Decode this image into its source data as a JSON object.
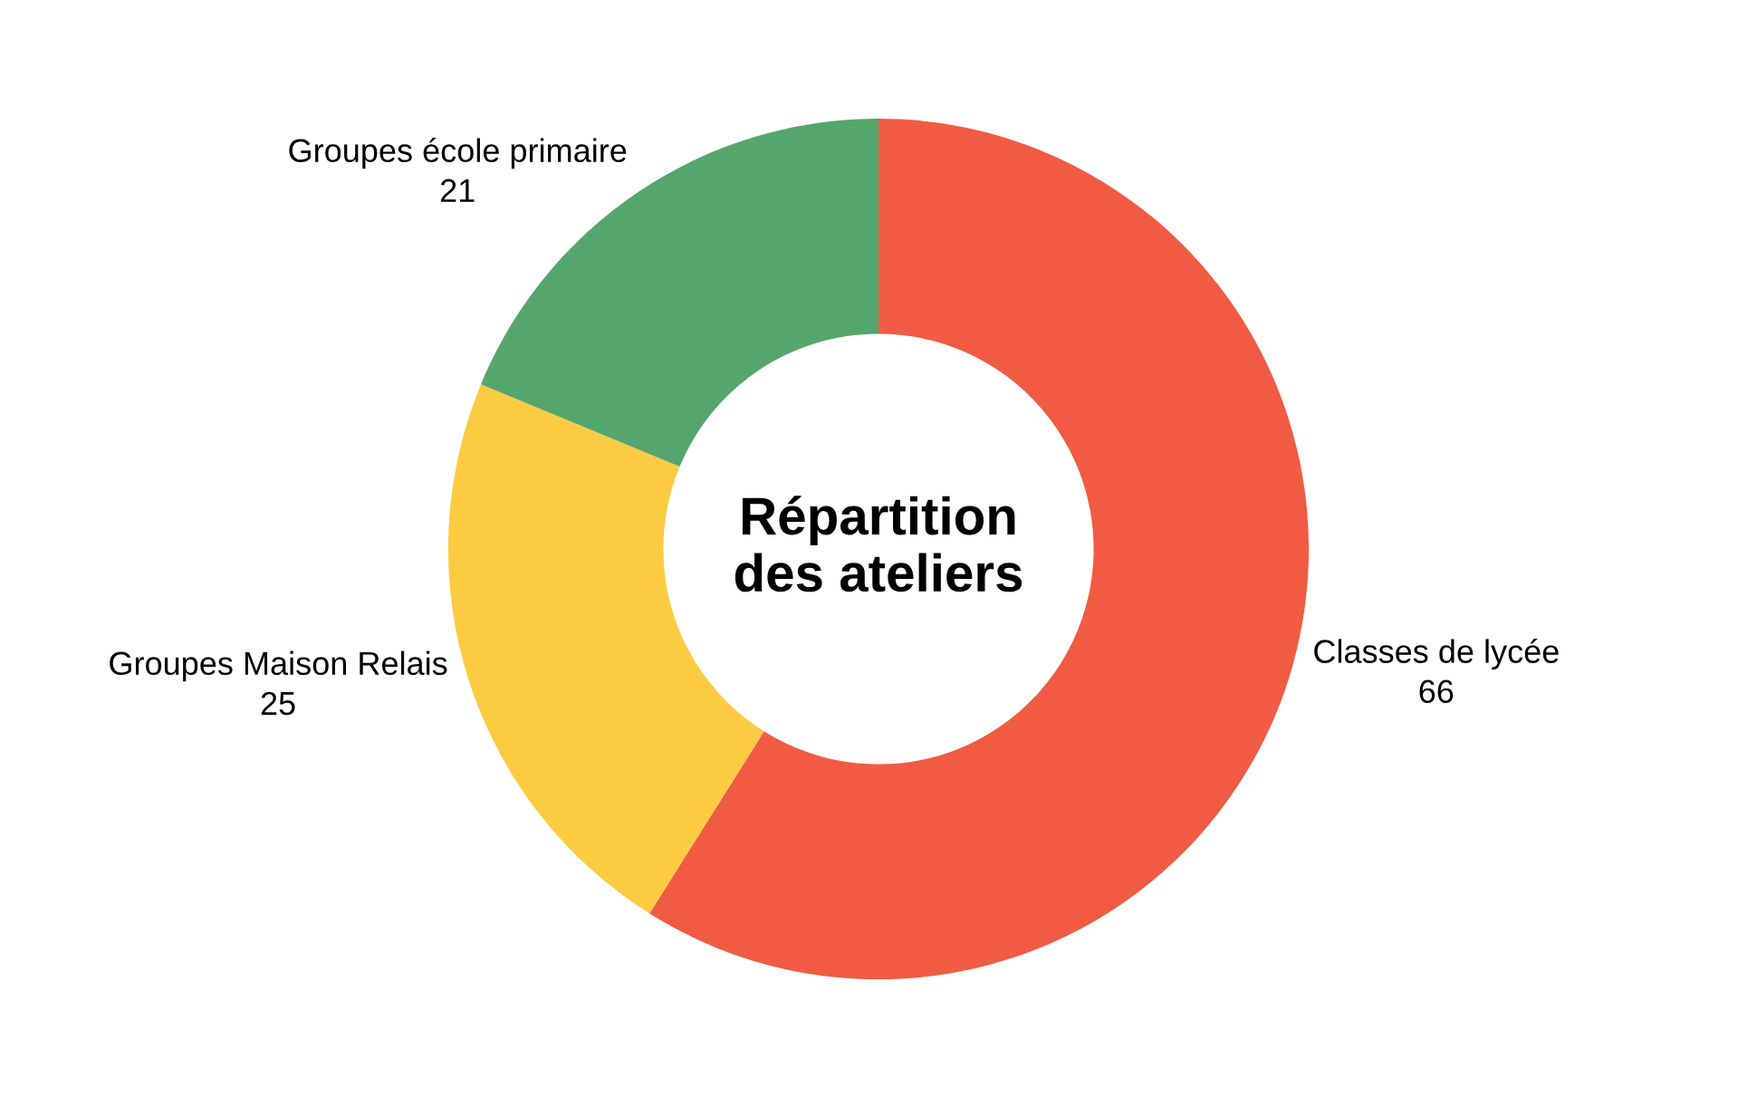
{
  "chart_data": {
    "type": "donut",
    "title": "Répartition\ndes ateliers",
    "categories": [
      "Classes de lycée",
      "Groupes Maison Relais",
      "Groupes école primaire"
    ],
    "values": [
      66,
      25,
      21
    ],
    "colors": [
      "#f15b43",
      "#fdcb41",
      "#55a66d"
    ],
    "data_labels": true,
    "legend": false
  }
}
